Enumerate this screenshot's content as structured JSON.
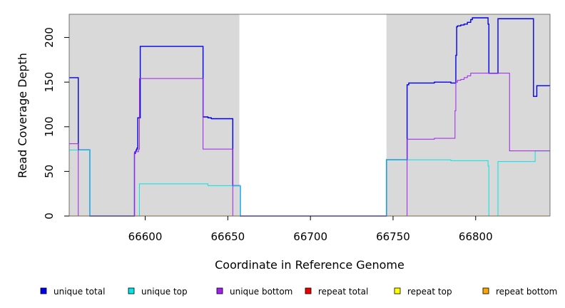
{
  "chart_data": {
    "type": "line",
    "title": "",
    "xlabel": "Coordinate in Reference Genome",
    "ylabel": "Read Coverage Depth",
    "xlim": [
      66554,
      66845
    ],
    "ylim": [
      0,
      226
    ],
    "xticks": [
      66600,
      66650,
      66700,
      66750,
      66800
    ],
    "yticks": [
      0,
      50,
      100,
      150,
      200
    ],
    "grid": false,
    "legend_placement": "bottom",
    "shaded_regions": [
      [
        66554,
        66657
      ],
      [
        66746,
        66845
      ]
    ],
    "shade_color": "#d9d9d9",
    "series": [
      {
        "name": "unique total",
        "color": "#0000ee",
        "step": true,
        "x": [
          66554,
          66559,
          66559.5,
          66566,
          66566.5,
          66593,
          66593.5,
          66594,
          66594.5,
          66595,
          66595.5,
          66596,
          66597,
          66598,
          66603,
          66608,
          66614,
          66620,
          66626,
          66634.5,
          66635,
          66638,
          66640,
          66652.5,
          66653,
          66657,
          66657.5,
          66680,
          66700,
          66720,
          66745.5,
          66746,
          66752,
          66758,
          66758.5,
          66759.5,
          66765,
          66770,
          66775,
          66782,
          66785,
          66787.5,
          66788,
          66788.5,
          66789,
          66791,
          66793,
          66795,
          66797,
          66798,
          66807,
          66807.5,
          66808,
          66810,
          66813,
          66813.5,
          66820,
          66820.5,
          66835,
          66837,
          66845
        ],
        "y": [
          155,
          155,
          74,
          74,
          0,
          0,
          70,
          72,
          74,
          76,
          110,
          110,
          190,
          190,
          190,
          190,
          190,
          190,
          190,
          190,
          111,
          110,
          109,
          109,
          34,
          34,
          0,
          0,
          0,
          0,
          0,
          63,
          63,
          63,
          147,
          149,
          149,
          149,
          150,
          150,
          149,
          149,
          180,
          212,
          213,
          214,
          215,
          217,
          220,
          222,
          222,
          215,
          160,
          160,
          160,
          221,
          221,
          221,
          134,
          146,
          146
        ]
      },
      {
        "name": "unique top",
        "color": "#00e5e5",
        "step": true,
        "x": [
          66554,
          66559,
          66559.5,
          66566,
          66566.5,
          66593,
          66596.5,
          66596.5,
          66610,
          66620,
          66630,
          66637,
          66638,
          66640,
          66652,
          66653,
          66656,
          66657,
          66657.5,
          66680,
          66700,
          66720,
          66745.5,
          66746,
          66752,
          66770,
          66785,
          66787,
          66800,
          66807,
          66807.5,
          66808,
          66813,
          66813.5,
          66820,
          66835,
          66836,
          66845
        ],
        "y": [
          74,
          74,
          74,
          74,
          0,
          0,
          0,
          36,
          36,
          36,
          36,
          36,
          34,
          34,
          34,
          34,
          34,
          34,
          0,
          0,
          0,
          0,
          0,
          63,
          63,
          63,
          62,
          62,
          62,
          62,
          56,
          0,
          0,
          61,
          61,
          61,
          73,
          73
        ]
      },
      {
        "name": "unique bottom",
        "color": "#a020f0",
        "step": true,
        "x": [
          66554,
          66559,
          66559.5,
          66593,
          66593.5,
          66596,
          66596.5,
          66610,
          66620,
          66634.5,
          66635,
          66652.5,
          66653,
          66657,
          66700,
          66746,
          66758,
          66758.5,
          66770,
          66775,
          66787,
          66787.5,
          66788,
          66789,
          66791,
          66793,
          66795,
          66797,
          66820,
          66820.5,
          66845
        ],
        "y": [
          81,
          81,
          0,
          0,
          72,
          75,
          154,
          154,
          154,
          154,
          75,
          75,
          0,
          0,
          0,
          0,
          0,
          86,
          86,
          87,
          87,
          118,
          150,
          152,
          153,
          155,
          157,
          160,
          160,
          73,
          73
        ]
      },
      {
        "name": "repeat total",
        "color": "#ee0000",
        "step": true,
        "x": [
          66554,
          66845
        ],
        "y": [
          0,
          0
        ]
      },
      {
        "name": "repeat top",
        "color": "#ffff00",
        "step": true,
        "x": [
          66554,
          66845
        ],
        "y": [
          0,
          0
        ]
      },
      {
        "name": "repeat bottom",
        "color": "#ffa500",
        "step": true,
        "x": [
          66554,
          66845
        ],
        "y": [
          0,
          0
        ]
      }
    ]
  }
}
